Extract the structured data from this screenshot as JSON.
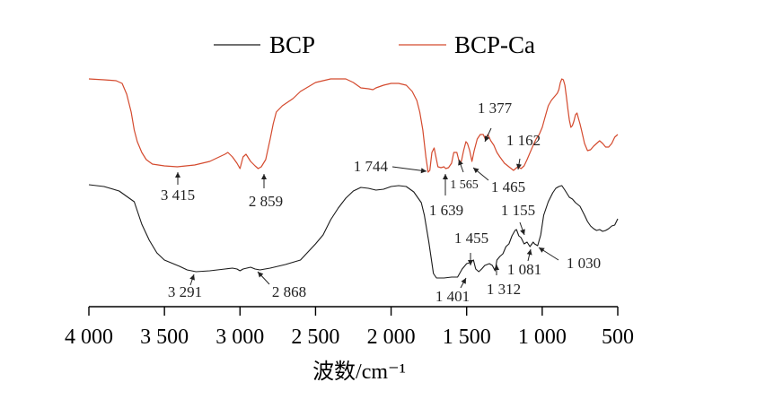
{
  "chart_data": {
    "type": "line",
    "title": "",
    "xlabel": "波数/cm⁻¹",
    "ylabel": "",
    "xlim": [
      4000,
      500
    ],
    "x_reversed": true,
    "y_axis_visible": false,
    "grid": false,
    "legend_placement": "top",
    "xticks": [
      {
        "value": 4000,
        "label": "4 000"
      },
      {
        "value": 3500,
        "label": "3 500"
      },
      {
        "value": 3000,
        "label": "3 000"
      },
      {
        "value": 2500,
        "label": "2 500"
      },
      {
        "value": 2000,
        "label": "2 000"
      },
      {
        "value": 1500,
        "label": "1 500"
      },
      {
        "value": 1000,
        "label": "1 000"
      },
      {
        "value": 500,
        "label": "500"
      }
    ],
    "series": [
      {
        "name": "BCP",
        "color": "#1a1a1a",
        "points": [
          [
            4000,
            206
          ],
          [
            3900,
            208
          ],
          [
            3800,
            213
          ],
          [
            3700,
            225
          ],
          [
            3650,
            250
          ],
          [
            3600,
            268
          ],
          [
            3550,
            282
          ],
          [
            3500,
            290
          ],
          [
            3400,
            297
          ],
          [
            3350,
            301
          ],
          [
            3291,
            303
          ],
          [
            3200,
            302
          ],
          [
            3100,
            300
          ],
          [
            3050,
            299
          ],
          [
            3020,
            300
          ],
          [
            3000,
            302
          ],
          [
            2980,
            300
          ],
          [
            2930,
            298
          ],
          [
            2900,
            300
          ],
          [
            2868,
            301
          ],
          [
            2800,
            299
          ],
          [
            2700,
            295
          ],
          [
            2600,
            290
          ],
          [
            2550,
            281
          ],
          [
            2500,
            272
          ],
          [
            2450,
            262
          ],
          [
            2400,
            245
          ],
          [
            2350,
            232
          ],
          [
            2300,
            221
          ],
          [
            2250,
            213
          ],
          [
            2200,
            209
          ],
          [
            2150,
            210
          ],
          [
            2100,
            212
          ],
          [
            2050,
            211
          ],
          [
            2000,
            208
          ],
          [
            1950,
            207
          ],
          [
            1900,
            208
          ],
          [
            1850,
            214
          ],
          [
            1800,
            226
          ],
          [
            1780,
            240
          ],
          [
            1750,
            270
          ],
          [
            1720,
            305
          ],
          [
            1700,
            310
          ],
          [
            1650,
            310
          ],
          [
            1600,
            309
          ],
          [
            1560,
            309
          ],
          [
            1530,
            300
          ],
          [
            1500,
            294
          ],
          [
            1480,
            293
          ],
          [
            1455,
            290
          ],
          [
            1440,
            300
          ],
          [
            1420,
            303
          ],
          [
            1401,
            300
          ],
          [
            1380,
            296
          ],
          [
            1350,
            294
          ],
          [
            1330,
            296
          ],
          [
            1312,
            302
          ],
          [
            1300,
            290
          ],
          [
            1280,
            286
          ],
          [
            1260,
            283
          ],
          [
            1240,
            275
          ],
          [
            1220,
            272
          ],
          [
            1200,
            263
          ],
          [
            1180,
            257
          ],
          [
            1170,
            256
          ],
          [
            1155,
            263
          ],
          [
            1140,
            265
          ],
          [
            1120,
            272
          ],
          [
            1100,
            270
          ],
          [
            1081,
            275
          ],
          [
            1060,
            270
          ],
          [
            1050,
            272
          ],
          [
            1030,
            274
          ],
          [
            1010,
            262
          ],
          [
            990,
            240
          ],
          [
            960,
            225
          ],
          [
            930,
            215
          ],
          [
            910,
            210
          ],
          [
            890,
            208
          ],
          [
            870,
            207
          ],
          [
            850,
            212
          ],
          [
            820,
            220
          ],
          [
            800,
            222
          ],
          [
            780,
            226
          ],
          [
            750,
            230
          ],
          [
            720,
            240
          ],
          [
            700,
            247
          ],
          [
            680,
            252
          ],
          [
            660,
            255
          ],
          [
            640,
            257
          ],
          [
            620,
            256
          ],
          [
            600,
            258
          ],
          [
            580,
            257
          ],
          [
            560,
            255
          ],
          [
            540,
            252
          ],
          [
            520,
            251
          ],
          [
            500,
            244
          ]
        ]
      },
      {
        "name": "BCP-Ca",
        "color": "#d44a2e",
        "points": [
          [
            4000,
            88
          ],
          [
            3900,
            89
          ],
          [
            3820,
            90
          ],
          [
            3780,
            93
          ],
          [
            3750,
            105
          ],
          [
            3720,
            125
          ],
          [
            3700,
            145
          ],
          [
            3680,
            158
          ],
          [
            3650,
            170
          ],
          [
            3620,
            178
          ],
          [
            3580,
            183
          ],
          [
            3500,
            185
          ],
          [
            3415,
            186
          ],
          [
            3300,
            184
          ],
          [
            3200,
            180
          ],
          [
            3150,
            176
          ],
          [
            3100,
            172
          ],
          [
            3080,
            170
          ],
          [
            3050,
            175
          ],
          [
            3020,
            182
          ],
          [
            3000,
            188
          ],
          [
            2980,
            175
          ],
          [
            2960,
            172
          ],
          [
            2930,
            180
          ],
          [
            2900,
            185
          ],
          [
            2880,
            188
          ],
          [
            2859,
            186
          ],
          [
            2830,
            178
          ],
          [
            2800,
            155
          ],
          [
            2780,
            138
          ],
          [
            2760,
            125
          ],
          [
            2720,
            118
          ],
          [
            2650,
            110
          ],
          [
            2600,
            102
          ],
          [
            2500,
            92
          ],
          [
            2450,
            90
          ],
          [
            2400,
            88
          ],
          [
            2300,
            88
          ],
          [
            2250,
            92
          ],
          [
            2200,
            98
          ],
          [
            2150,
            99
          ],
          [
            2120,
            100
          ],
          [
            2100,
            98
          ],
          [
            2050,
            95
          ],
          [
            2000,
            93
          ],
          [
            1950,
            93
          ],
          [
            1900,
            95
          ],
          [
            1860,
            102
          ],
          [
            1830,
            112
          ],
          [
            1810,
            125
          ],
          [
            1790,
            145
          ],
          [
            1770,
            175
          ],
          [
            1755,
            192
          ],
          [
            1744,
            190
          ],
          [
            1730,
            170
          ],
          [
            1715,
            165
          ],
          [
            1700,
            178
          ],
          [
            1690,
            186
          ],
          [
            1670,
            187
          ],
          [
            1650,
            186
          ],
          [
            1639,
            188
          ],
          [
            1620,
            187
          ],
          [
            1600,
            182
          ],
          [
            1585,
            170
          ],
          [
            1565,
            170
          ],
          [
            1550,
            180
          ],
          [
            1535,
            180
          ],
          [
            1520,
            168
          ],
          [
            1505,
            158
          ],
          [
            1495,
            160
          ],
          [
            1480,
            168
          ],
          [
            1465,
            180
          ],
          [
            1450,
            168
          ],
          [
            1430,
            155
          ],
          [
            1410,
            150
          ],
          [
            1390,
            150
          ],
          [
            1377,
            155
          ],
          [
            1360,
            150
          ],
          [
            1340,
            157
          ],
          [
            1320,
            162
          ],
          [
            1300,
            170
          ],
          [
            1280,
            175
          ],
          [
            1250,
            182
          ],
          [
            1220,
            186
          ],
          [
            1190,
            190
          ],
          [
            1162,
            186
          ],
          [
            1140,
            188
          ],
          [
            1120,
            185
          ],
          [
            1100,
            178
          ],
          [
            1080,
            170
          ],
          [
            1060,
            162
          ],
          [
            1040,
            155
          ],
          [
            1020,
            150
          ],
          [
            1000,
            142
          ],
          [
            980,
            130
          ],
          [
            960,
            118
          ],
          [
            940,
            112
          ],
          [
            920,
            108
          ],
          [
            900,
            104
          ],
          [
            890,
            100
          ],
          [
            880,
            92
          ],
          [
            870,
            88
          ],
          [
            860,
            89
          ],
          [
            850,
            95
          ],
          [
            840,
            108
          ],
          [
            830,
            122
          ],
          [
            820,
            134
          ],
          [
            810,
            142
          ],
          [
            800,
            140
          ],
          [
            790,
            135
          ],
          [
            780,
            128
          ],
          [
            770,
            126
          ],
          [
            760,
            132
          ],
          [
            750,
            138
          ],
          [
            740,
            145
          ],
          [
            720,
            160
          ],
          [
            700,
            168
          ],
          [
            680,
            167
          ],
          [
            660,
            163
          ],
          [
            640,
            160
          ],
          [
            620,
            157
          ],
          [
            600,
            160
          ],
          [
            580,
            164
          ],
          [
            560,
            164
          ],
          [
            540,
            160
          ],
          [
            520,
            153
          ],
          [
            500,
            150
          ]
        ]
      }
    ],
    "annotations": [
      {
        "label": "3 415",
        "series": "BCP-Ca",
        "small": false
      },
      {
        "label": "2 859",
        "series": "BCP-Ca",
        "small": false
      },
      {
        "label": "1 744",
        "series": "BCP-Ca",
        "small": false
      },
      {
        "label": "1 639",
        "series": "BCP-Ca",
        "small": false
      },
      {
        "label": "1 565",
        "series": "BCP-Ca",
        "small": true
      },
      {
        "label": "1 465",
        "series": "BCP-Ca",
        "small": false
      },
      {
        "label": "1 377",
        "series": "BCP-Ca",
        "small": false
      },
      {
        "label": "1 162",
        "series": "BCP-Ca",
        "small": false
      },
      {
        "label": "3 291",
        "series": "BCP",
        "small": false
      },
      {
        "label": "2 868",
        "series": "BCP",
        "small": false
      },
      {
        "label": "1 455",
        "series": "BCP",
        "small": false
      },
      {
        "label": "1 401",
        "series": "BCP",
        "small": false
      },
      {
        "label": "1 312",
        "series": "BCP",
        "small": false
      },
      {
        "label": "1 155",
        "series": "BCP",
        "small": false
      },
      {
        "label": "1 081",
        "series": "BCP",
        "small": false
      },
      {
        "label": "1 030",
        "series": "BCP",
        "small": false
      }
    ]
  }
}
